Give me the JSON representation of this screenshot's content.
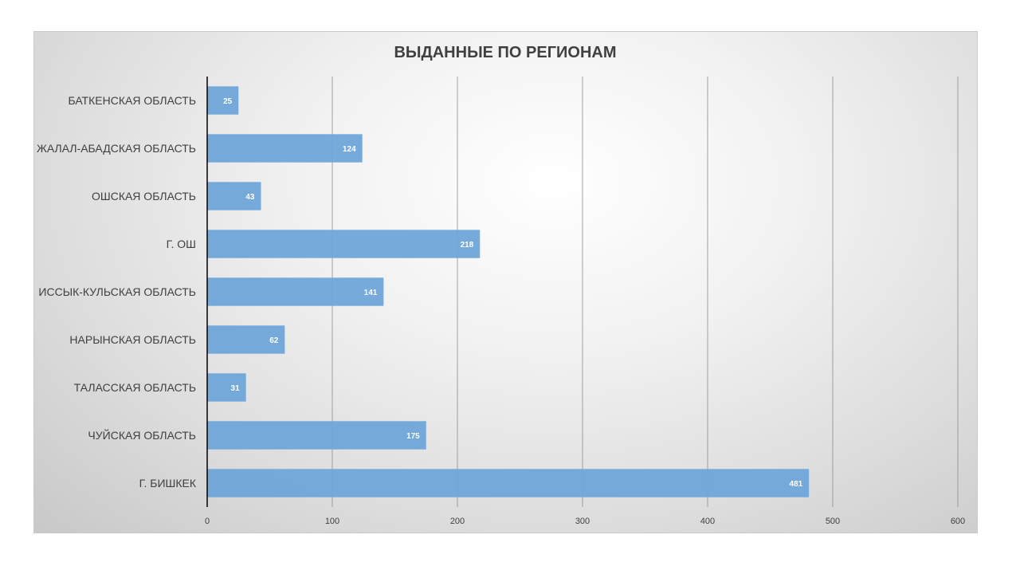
{
  "chart_data": {
    "type": "bar",
    "orientation": "horizontal",
    "title": "ВЫДАННЫЕ ПО РЕГИОНАМ",
    "categories": [
      "БАТКЕНСКАЯ ОБЛАСТЬ",
      "ЖАЛАЛ-АБАДСКАЯ ОБЛАСТЬ",
      "ОШСКАЯ ОБЛАСТЬ",
      "Г. ОШ",
      "ИССЫК-КУЛЬСКАЯ ОБЛАСТЬ",
      "НАРЫНСКАЯ ОБЛАСТЬ",
      "ТАЛАССКАЯ ОБЛАСТЬ",
      "ЧУЙСКАЯ ОБЛАСТЬ",
      "Г. БИШКЕК"
    ],
    "values": [
      25,
      124,
      43,
      218,
      141,
      62,
      31,
      175,
      481
    ],
    "xlim": [
      0,
      600
    ],
    "xticks": [
      "0",
      "100",
      "200",
      "300",
      "400",
      "500",
      "600"
    ],
    "xlabel": "",
    "ylabel": "",
    "grid": true,
    "data_labels": true,
    "bar_color": "#6fa5d8",
    "legend": "none"
  }
}
